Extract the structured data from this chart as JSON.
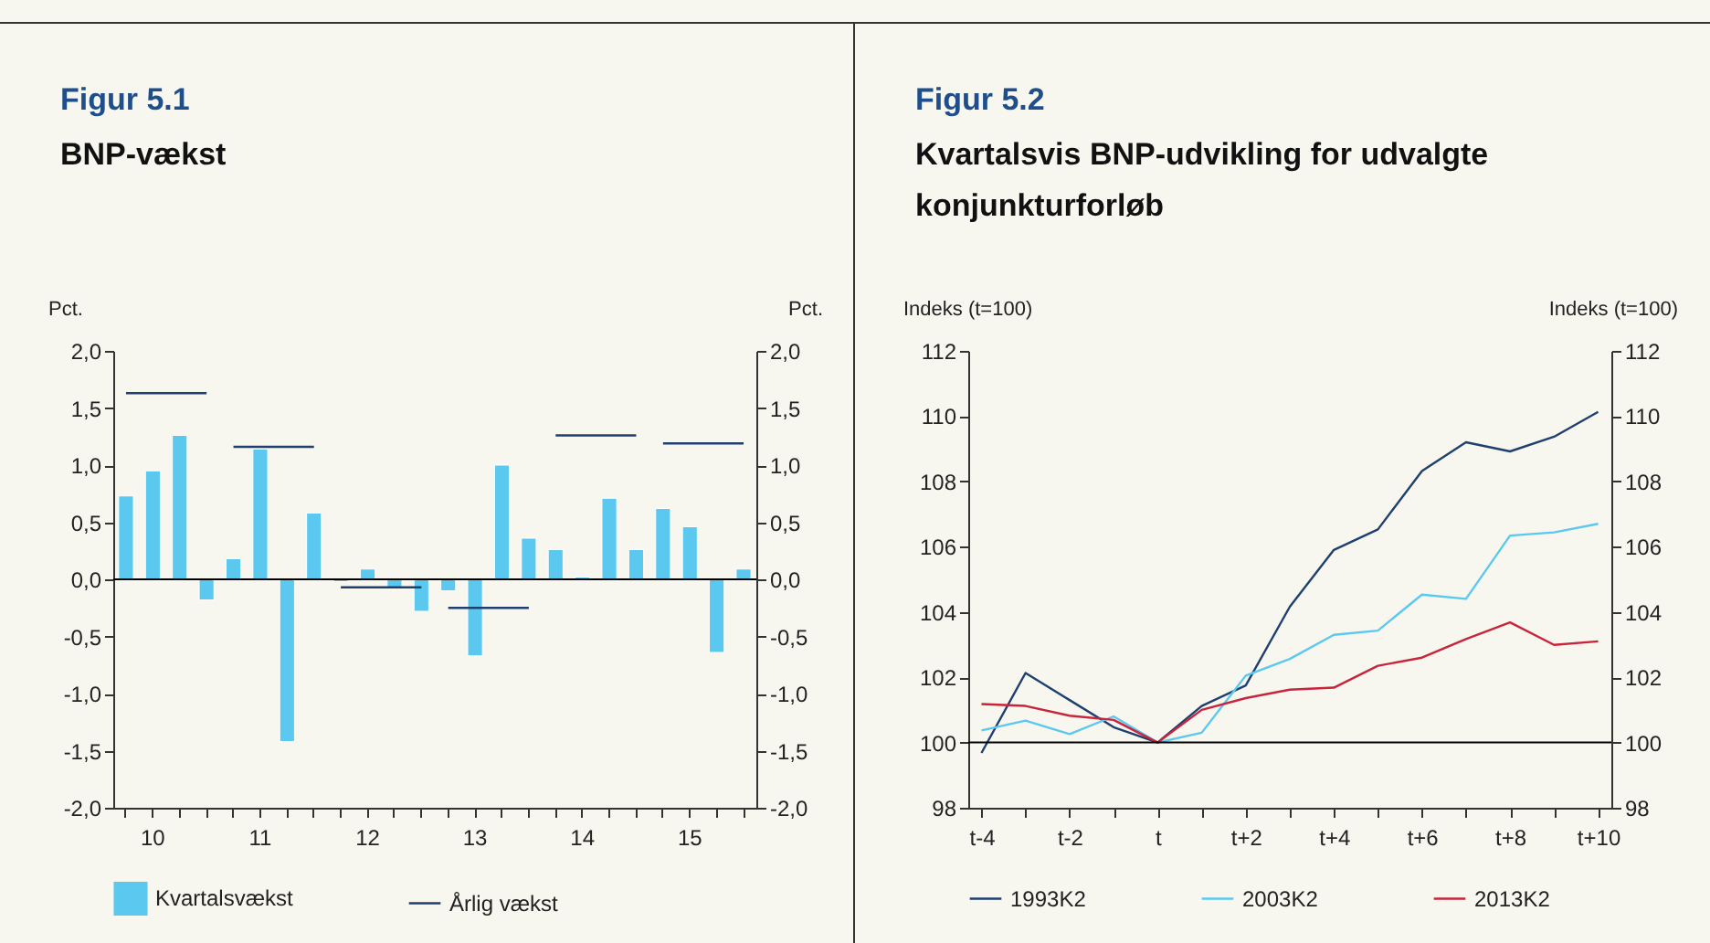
{
  "chart_data": [
    {
      "type": "bar",
      "title": "Figur 5.1",
      "subtitle": "BNP-vækst",
      "ylabel": "Pct.",
      "y2label": "Pct.",
      "categories": [
        null,
        "10",
        null,
        null,
        null,
        "11",
        null,
        null,
        null,
        "12",
        null,
        null,
        null,
        "13",
        null,
        null,
        null,
        "14",
        null,
        null,
        null,
        "15",
        null,
        null
      ],
      "series": [
        {
          "name": "Kvartalsvækst",
          "type": "bar",
          "color": "#5bc8ef",
          "values": [
            0.73,
            0.95,
            1.26,
            -0.18,
            0.18,
            1.14,
            -1.42,
            0.58,
            -0.02,
            0.09,
            -0.07,
            -0.28,
            -0.1,
            -0.67,
            1.0,
            0.36,
            0.26,
            0.02,
            0.71,
            0.26,
            0.62,
            0.46,
            -0.64,
            0.09
          ]
        },
        {
          "name": "Årlig vækst",
          "type": "line",
          "color": "#1f3f6e",
          "values": [
            1.63,
            1.63,
            1.63,
            1.63,
            1.16,
            1.16,
            1.16,
            1.16,
            -0.07,
            -0.07,
            -0.07,
            -0.07,
            -0.25,
            -0.25,
            -0.25,
            -0.25,
            1.26,
            1.26,
            1.26,
            1.26,
            1.19,
            1.19,
            1.19,
            1.19
          ]
        }
      ],
      "ylim": [
        -2,
        2
      ],
      "yticks": [
        {
          "value": -2,
          "label": "-2,0"
        },
        {
          "value": -1.5,
          "label": "-1,5"
        },
        {
          "value": -1,
          "label": "-1,0"
        },
        {
          "value": -0.5,
          "label": "-0,5"
        },
        {
          "value": 0,
          "label": "0,0"
        },
        {
          "value": 0.5,
          "label": "0,5"
        },
        {
          "value": 1,
          "label": "1,0"
        },
        {
          "value": 1.5,
          "label": "1,5"
        },
        {
          "value": 2,
          "label": "2,0"
        }
      ],
      "y2lim": [
        -2,
        2
      ],
      "y2ticks": [
        {
          "value": -2,
          "label": "-2,0"
        },
        {
          "value": -1.5,
          "label": "-1,5"
        },
        {
          "value": -1,
          "label": "-1,0"
        },
        {
          "value": -0.5,
          "label": "-0,5"
        },
        {
          "value": 0,
          "label": "0,0"
        },
        {
          "value": 0.5,
          "label": "0,5"
        },
        {
          "value": 1,
          "label": "1,0"
        },
        {
          "value": 1.5,
          "label": "1,5"
        },
        {
          "value": 2,
          "label": "2,0"
        }
      ],
      "ref_lines": [
        {
          "axis": "y",
          "value": 0,
          "color": "#000000"
        }
      ],
      "legend": "bottom",
      "grid": false
    },
    {
      "type": "line",
      "title": "Figur 5.2",
      "subtitle": "Kvartalsvis BNP-udvikling for udvalgte konjunkturforløb",
      "ylabel": "Indeks (t=100)",
      "y2label": "Indeks (t=100)",
      "categories": [
        "t-4",
        null,
        "t-2",
        null,
        "t",
        null,
        "t+2",
        null,
        "t+4",
        null,
        "t+6",
        null,
        "t+8",
        null,
        "t+10"
      ],
      "series": [
        {
          "name": "1993K2",
          "color": "#1f3f6e",
          "values": [
            99.68,
            102.13,
            101.3,
            100.47,
            100,
            101.12,
            101.75,
            104.16,
            105.9,
            106.53,
            108.32,
            109.2,
            108.92,
            109.37,
            110.13
          ]
        },
        {
          "name": "2003K2",
          "color": "#5bc8ef",
          "values": [
            100.37,
            100.67,
            100.26,
            100.8,
            100,
            100.3,
            102.05,
            102.56,
            103.3,
            103.43,
            104.53,
            104.4,
            106.34,
            106.44,
            106.7
          ]
        },
        {
          "name": "2013K2",
          "color": "#c8243c",
          "values": [
            101.18,
            101.12,
            100.82,
            100.69,
            100,
            101.0,
            101.36,
            101.62,
            101.68,
            102.35,
            102.6,
            103.17,
            103.68,
            102.99,
            103.1
          ]
        }
      ],
      "ylim": [
        98,
        112
      ],
      "yticks": [
        98,
        100,
        102,
        104,
        106,
        108,
        110,
        112
      ],
      "y2lim": [
        98,
        112
      ],
      "y2ticks": [
        98,
        100,
        102,
        104,
        106,
        108,
        110,
        112
      ],
      "ref_lines": [
        {
          "axis": "y",
          "value": 100,
          "color": "#000000"
        }
      ],
      "legend": "bottom",
      "grid": false,
      "marker": "none",
      "line_style": "solid"
    }
  ]
}
